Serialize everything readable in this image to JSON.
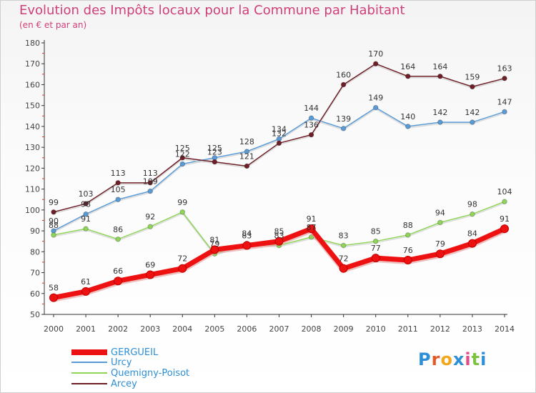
{
  "header": {
    "title": "Evolution des Impôts locaux pour la Commune par Habitant",
    "subtitle": "(en € et par an)"
  },
  "brand": {
    "logo_text": "Proxiti"
  },
  "colors": {
    "title": "#d0407a",
    "axis_text": "#444444",
    "legend_text": "#2d8fd6"
  },
  "chart_data": {
    "type": "line",
    "title": "Evolution des Impôts locaux pour la Commune par Habitant",
    "ylabel": "(en € et par an)",
    "xlabel": "",
    "x": [
      "2000",
      "2001",
      "2002",
      "2003",
      "2004",
      "2005",
      "2006",
      "2007",
      "2008",
      "2009",
      "2010",
      "2011",
      "2012",
      "2013",
      "2014"
    ],
    "ylim": [
      50,
      180
    ],
    "yticks": [
      50,
      60,
      70,
      80,
      90,
      100,
      110,
      120,
      130,
      140,
      150,
      160,
      170,
      180
    ],
    "grid": false,
    "legend_position": "bottom-left",
    "series": [
      {
        "name": "GERGUEIL",
        "color": "#ee1111",
        "values": [
          58,
          61,
          66,
          69,
          72,
          81,
          83,
          85,
          91,
          72,
          77,
          76,
          79,
          84,
          91
        ]
      },
      {
        "name": "Urcy",
        "color": "#5b9bd5",
        "values": [
          90,
          98,
          105,
          109,
          122,
          125,
          128,
          134,
          144,
          139,
          149,
          140,
          142,
          142,
          147
        ]
      },
      {
        "name": "Quemigny-Poisot",
        "color": "#90d45a",
        "values": [
          88,
          91,
          86,
          92,
          99,
          79,
          84,
          83,
          87,
          83,
          85,
          88,
          94,
          98,
          104
        ]
      },
      {
        "name": "Arcey",
        "color": "#6e1f27",
        "values": [
          99,
          103,
          113,
          113,
          125,
          123,
          121,
          132,
          136,
          160,
          170,
          164,
          164,
          159,
          163
        ]
      }
    ]
  }
}
